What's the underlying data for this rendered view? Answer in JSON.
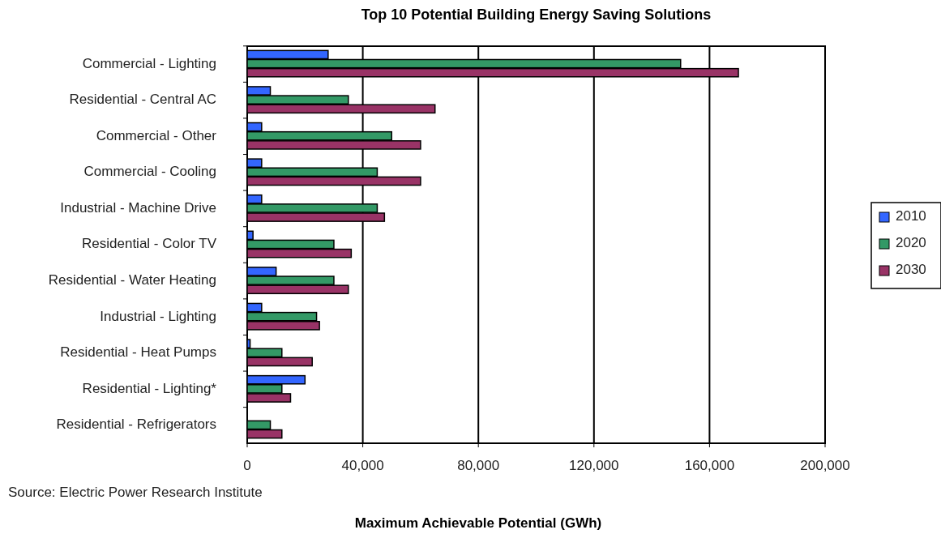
{
  "chart_data": {
    "type": "bar",
    "orientation": "horizontal",
    "title": "Top 10 Potential Building Energy Saving Solutions",
    "xlabel": "Maximum Achievable Potential (GWh)",
    "annotations": [
      "Source: Electric Power Research Institute"
    ],
    "categories": [
      "Commercial - Lighting",
      "Residential - Central AC",
      "Commercial - Other",
      "Commercial - Cooling",
      "Industrial - Machine Drive",
      "Residential - Color TV",
      "Residential - Water Heating",
      "Industrial - Lighting",
      "Residential - Heat Pumps",
      "Residential - Lighting*",
      "Residential - Refrigerators"
    ],
    "series": [
      {
        "name": "2010",
        "color": "#3366ff",
        "values": [
          28000,
          8000,
          5000,
          5000,
          5000,
          2000,
          10000,
          5000,
          1000,
          20000,
          null
        ]
      },
      {
        "name": "2020",
        "color": "#339966",
        "values": [
          150000,
          35000,
          50000,
          45000,
          45000,
          30000,
          30000,
          24000,
          12000,
          12000,
          8000
        ]
      },
      {
        "name": "2030",
        "color": "#993366",
        "values": [
          170000,
          65000,
          60000,
          60000,
          47500,
          36000,
          35000,
          25000,
          22500,
          15000,
          12000
        ]
      }
    ],
    "xlim": [
      0,
      200000
    ],
    "xticks": [
      {
        "value": 0,
        "label": "0"
      },
      {
        "value": 40000,
        "label": "40,000"
      },
      {
        "value": 80000,
        "label": "80,000"
      },
      {
        "value": 120000,
        "label": "120,000"
      },
      {
        "value": 160000,
        "label": "160,000"
      },
      {
        "value": 200000,
        "label": "200,000"
      }
    ],
    "grid": "x",
    "legend": "right"
  }
}
